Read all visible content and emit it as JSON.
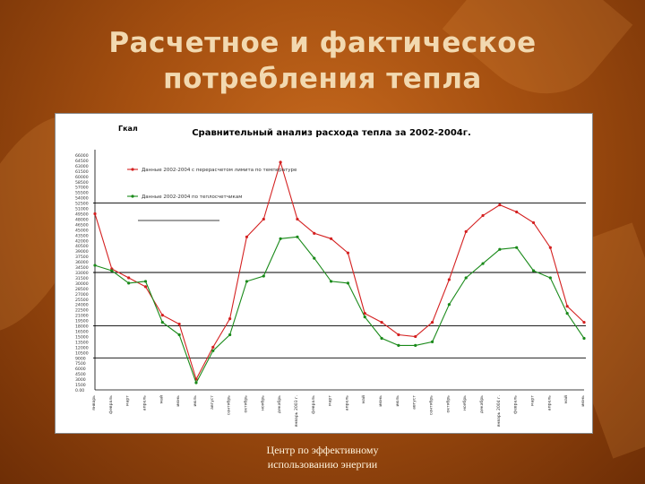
{
  "slide": {
    "title_line1": "Расчетное и фактическое",
    "title_line2": "потребления тепла",
    "footer_line1": "Центр по эффективному",
    "footer_line2": "использованию энергии"
  },
  "colors": {
    "background": "#a44f10",
    "title": "#f2d9b0",
    "series_calculated": "#d42020",
    "series_actual": "#1a8a1a"
  },
  "chart_data": {
    "type": "line",
    "title": "Сравнительный анализ расхода тепла за 2002-2004г.",
    "ylabel": "Гкал",
    "xlabel": "",
    "ylim": [
      0,
      66000
    ],
    "yticks": [
      0,
      1500,
      3000,
      4500,
      6000,
      7500,
      9000,
      10500,
      12000,
      13500,
      15000,
      16500,
      18000,
      19500,
      21000,
      22500,
      24000,
      25500,
      27000,
      28500,
      30000,
      31500,
      33000,
      34500,
      36000,
      37500,
      39000,
      40500,
      42000,
      43500,
      45000,
      46500,
      48000,
      49500,
      51000,
      52500,
      54000,
      55500,
      57000,
      58500,
      60000,
      61500,
      63000,
      64500,
      66000
    ],
    "ytick_labels": [
      "0.00",
      "1500",
      "3000",
      "4500",
      "6000",
      "7500",
      "9000",
      "10500",
      "12000",
      "13500",
      "15000",
      "16500",
      "18000",
      "19500",
      "21000",
      "22500",
      "24000",
      "25500",
      "27000",
      "28500",
      "30000",
      "31500",
      "33000",
      "34500",
      "36000",
      "37500",
      "39000",
      "40500",
      "42000",
      "43500",
      "45000",
      "46500",
      "48000",
      "49500",
      "51000",
      "52500",
      "54000",
      "55500",
      "57000",
      "58500",
      "60000",
      "61500",
      "63000",
      "64500",
      "66000"
    ],
    "reference_lines": [
      9000,
      18000,
      33000,
      52500
    ],
    "categories": [
      "январь",
      "февраль",
      "март",
      "апрель",
      "май",
      "июнь",
      "июль",
      "август",
      "сентябрь",
      "октябрь",
      "ноябрь",
      "декабрь",
      "январь 2003 г.",
      "февраль",
      "март",
      "апрель",
      "май",
      "июнь",
      "июль",
      "август",
      "сентябрь",
      "октябрь",
      "ноябрь",
      "декабрь",
      "январь 2004 г.",
      "февраль",
      "март",
      "апрель",
      "май",
      "июнь"
    ],
    "legend_position": "top-left",
    "grid": false,
    "series": [
      {
        "name": "Данные 2002-2004 с перерасчетом лимита по температуре",
        "color": "#d42020",
        "values": [
          49500,
          34000,
          31500,
          29000,
          21000,
          18500,
          3000,
          12000,
          20000,
          43000,
          48000,
          64000,
          48000,
          44000,
          42500,
          38500,
          21500,
          19000,
          15500,
          15000,
          19000,
          31000,
          44500,
          49000,
          52000,
          50000,
          47000,
          40000,
          23500,
          19000
        ]
      },
      {
        "name": "Данные 2002-2004 по теплосчетчикам",
        "color": "#1a8a1a",
        "values": [
          35000,
          33500,
          30000,
          30500,
          19000,
          15500,
          2000,
          11000,
          15500,
          30500,
          32000,
          42500,
          43000,
          37000,
          30500,
          30000,
          20500,
          14500,
          12500,
          12500,
          13500,
          24000,
          31500,
          35500,
          39500,
          40000,
          33500,
          31500,
          21500,
          14500
        ]
      }
    ]
  }
}
